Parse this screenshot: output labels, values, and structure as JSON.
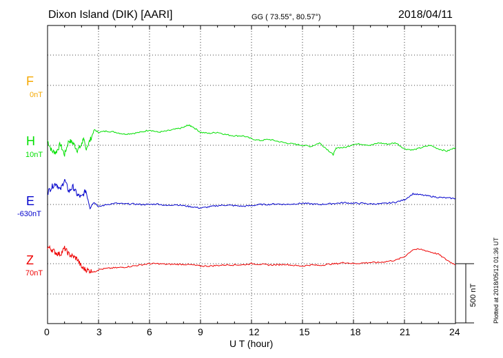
{
  "header": {
    "station": "Dixon Island (DIK)  [AARI]",
    "coords": "GG ( 73.55°,  80.57°)",
    "date": "2018/04/11"
  },
  "side": {
    "plotted": "Plotted at 2018/05/12 01:36 UT",
    "scale": "500 nT"
  },
  "colors": {
    "F": "#f5a800",
    "H": "#00e000",
    "E": "#0000cc",
    "Z": "#ee0000"
  },
  "chart_data": {
    "type": "line",
    "xlabel": "U T (hour)",
    "xlim": [
      0,
      24
    ],
    "x_ticks": [
      "0",
      "3",
      "6",
      "9",
      "12",
      "15",
      "18",
      "21",
      "24"
    ],
    "scale_nT": 500,
    "components": [
      {
        "name": "F",
        "baseline": "0nT"
      },
      {
        "name": "H",
        "baseline": "10nT"
      },
      {
        "name": "E",
        "baseline": "-630nT"
      },
      {
        "name": "Z",
        "baseline": "70nT"
      }
    ],
    "series": [
      {
        "name": "H",
        "x": [
          0,
          0.25,
          0.5,
          0.75,
          1,
          1.25,
          1.5,
          1.75,
          2,
          2.1,
          2.25,
          2.5,
          2.75,
          3,
          3.5,
          4,
          4.5,
          5,
          5.5,
          6,
          6.5,
          7,
          7.5,
          8,
          8.25,
          8.5,
          9,
          9.5,
          10,
          10.5,
          11,
          11.5,
          12,
          12.5,
          13,
          13.5,
          14,
          14.5,
          15,
          15.5,
          16,
          16.5,
          16.8,
          17,
          17.5,
          18,
          18.5,
          19,
          19.5,
          20,
          20.5,
          21,
          21.5,
          22,
          22.5,
          23,
          23.5,
          24
        ],
        "y": [
          40,
          -50,
          -60,
          10,
          -80,
          40,
          20,
          -40,
          0,
          60,
          -30,
          40,
          130,
          110,
          120,
          110,
          95,
          100,
          110,
          130,
          110,
          120,
          135,
          150,
          170,
          160,
          110,
          100,
          110,
          90,
          80,
          80,
          55,
          40,
          50,
          35,
          20,
          10,
          0,
          -10,
          20,
          -40,
          -80,
          -20,
          -20,
          10,
          10,
          0,
          20,
          10,
          20,
          -30,
          -40,
          -20,
          0,
          -30,
          -50,
          -20
        ]
      },
      {
        "name": "E",
        "x": [
          0,
          0.25,
          0.5,
          0.75,
          1,
          1.25,
          1.5,
          1.75,
          2,
          2.25,
          2.5,
          2.75,
          3,
          3.5,
          4,
          4.5,
          5,
          5.5,
          6,
          6.5,
          7,
          7.5,
          8,
          8.5,
          9,
          9.5,
          10,
          10.5,
          11,
          11.5,
          12,
          12.5,
          13,
          13.5,
          14,
          14.5,
          15,
          15.5,
          16,
          16.5,
          17,
          17.5,
          18,
          18.5,
          19,
          19.5,
          20,
          20.5,
          21,
          21.5,
          22,
          22.5,
          23,
          23.5,
          24
        ],
        "y": [
          100,
          150,
          180,
          120,
          210,
          110,
          150,
          80,
          60,
          120,
          -20,
          20,
          -20,
          0,
          10,
          5,
          5,
          0,
          0,
          5,
          -10,
          0,
          -10,
          -20,
          -30,
          -20,
          -10,
          -5,
          -10,
          -15,
          -10,
          0,
          0,
          5,
          0,
          5,
          10,
          5,
          0,
          5,
          10,
          15,
          10,
          10,
          5,
          5,
          10,
          20,
          40,
          90,
          80,
          70,
          60,
          55,
          50
        ]
      },
      {
        "name": "Z",
        "x": [
          0,
          0.25,
          0.5,
          0.75,
          1,
          1.25,
          1.5,
          1.75,
          2,
          2.25,
          2.5,
          2.75,
          3,
          3.5,
          4,
          4.5,
          5,
          5.5,
          6,
          6.5,
          7,
          7.5,
          8,
          8.5,
          9,
          9.5,
          10,
          10.5,
          11,
          11.5,
          12,
          12.5,
          13,
          13.5,
          14,
          14.5,
          15,
          15.5,
          16,
          16.5,
          17,
          17.5,
          18,
          18.5,
          19,
          19.5,
          20,
          20.5,
          21,
          21.5,
          22,
          22.5,
          23,
          23.5,
          24
        ],
        "y": [
          140,
          120,
          90,
          80,
          130,
          80,
          60,
          40,
          -30,
          -50,
          -60,
          -70,
          -50,
          -40,
          -35,
          -30,
          -20,
          -10,
          0,
          0,
          -5,
          -5,
          -5,
          -10,
          -20,
          -20,
          -15,
          -10,
          -10,
          -10,
          0,
          -5,
          -10,
          -10,
          -5,
          -15,
          -20,
          -10,
          -15,
          -5,
          0,
          10,
          0,
          5,
          10,
          10,
          20,
          30,
          60,
          120,
          120,
          100,
          80,
          30,
          -10
        ]
      }
    ]
  }
}
